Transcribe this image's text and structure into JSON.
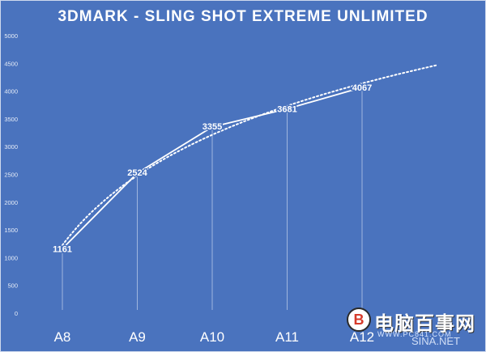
{
  "chart_data": {
    "type": "line",
    "title": "3DMARK - SLING SHOT EXTREME UNLIMITED",
    "categories": [
      "A8",
      "A9",
      "A10",
      "A11",
      "A12"
    ],
    "series": [
      {
        "values": [
          1161,
          2524,
          3355,
          3681,
          4067
        ]
      }
    ],
    "data_labels": [
      "1161",
      "2524",
      "3355",
      "3681",
      "4067"
    ],
    "y_ticks": [
      "0",
      "500",
      "1000",
      "1500",
      "2000",
      "2500",
      "3000",
      "3500",
      "4000",
      "4500",
      "5000"
    ],
    "ylim": [
      0,
      5000
    ],
    "trendline": {
      "type": "logarithmic",
      "style": "dotted",
      "extends_to": 6,
      "end_value": 4450
    },
    "drop_lines": true,
    "grid": false,
    "legend": "none",
    "colors": {
      "background": "#4a73be",
      "line": "#ffffff"
    }
  },
  "watermark": {
    "logo_glyph": "B",
    "name": "电脑百事网",
    "url": "WWW.PC841.COM",
    "site": "SINA.NET"
  }
}
